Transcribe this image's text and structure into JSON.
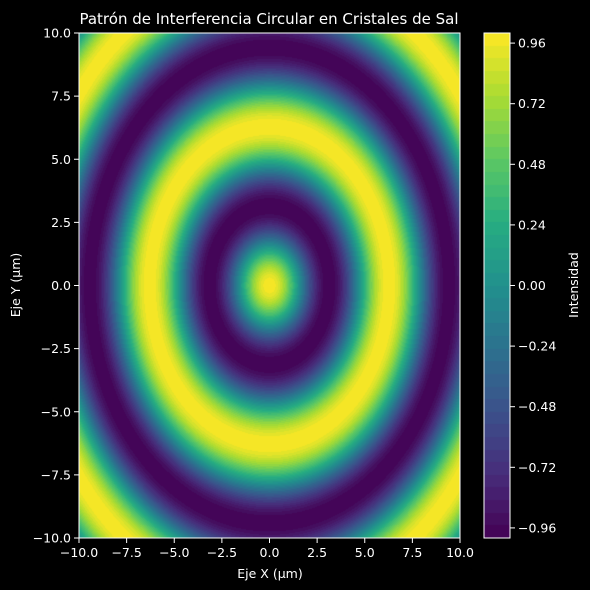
{
  "chart_data": {
    "type": "heatmap",
    "title": "Patrón de Interferencia Circular en Cristales de Sal",
    "xlabel": "Eje X (µm)",
    "ylabel": "Eje Y (µm)",
    "xlim": [
      -10,
      10
    ],
    "ylim": [
      -10,
      10
    ],
    "x_ticks": [
      -10,
      -7.5,
      -5,
      -2.5,
      0,
      2.5,
      5,
      7.5,
      10
    ],
    "x_tick_labels": [
      "−10.0",
      "−7.5",
      "−5.0",
      "−2.5",
      "0.0",
      "2.5",
      "5.0",
      "7.5",
      "10.0"
    ],
    "y_ticks": [
      10,
      7.5,
      5,
      2.5,
      0,
      -2.5,
      -5,
      -7.5,
      -10
    ],
    "y_tick_labels": [
      "10.0",
      "7.5",
      "5.0",
      "2.5",
      "0.0",
      "−2.5",
      "−5.0",
      "−7.5",
      "−10.0"
    ],
    "function": "cos(sqrt(x^2 + y^2))",
    "colormap": "viridis",
    "vmin": -1,
    "vmax": 1,
    "colorbar": {
      "label": "Intensidad",
      "ticks": [
        0.96,
        0.72,
        0.48,
        0.24,
        0.0,
        -0.24,
        -0.48,
        -0.72,
        -0.96
      ],
      "tick_labels": [
        "0.96",
        "0.72",
        "0.48",
        "0.24",
        "0.00",
        "−0.24",
        "−0.48",
        "−0.72",
        "−0.96"
      ]
    },
    "grid": false,
    "background": "#000000",
    "text_color": "#ffffff"
  }
}
